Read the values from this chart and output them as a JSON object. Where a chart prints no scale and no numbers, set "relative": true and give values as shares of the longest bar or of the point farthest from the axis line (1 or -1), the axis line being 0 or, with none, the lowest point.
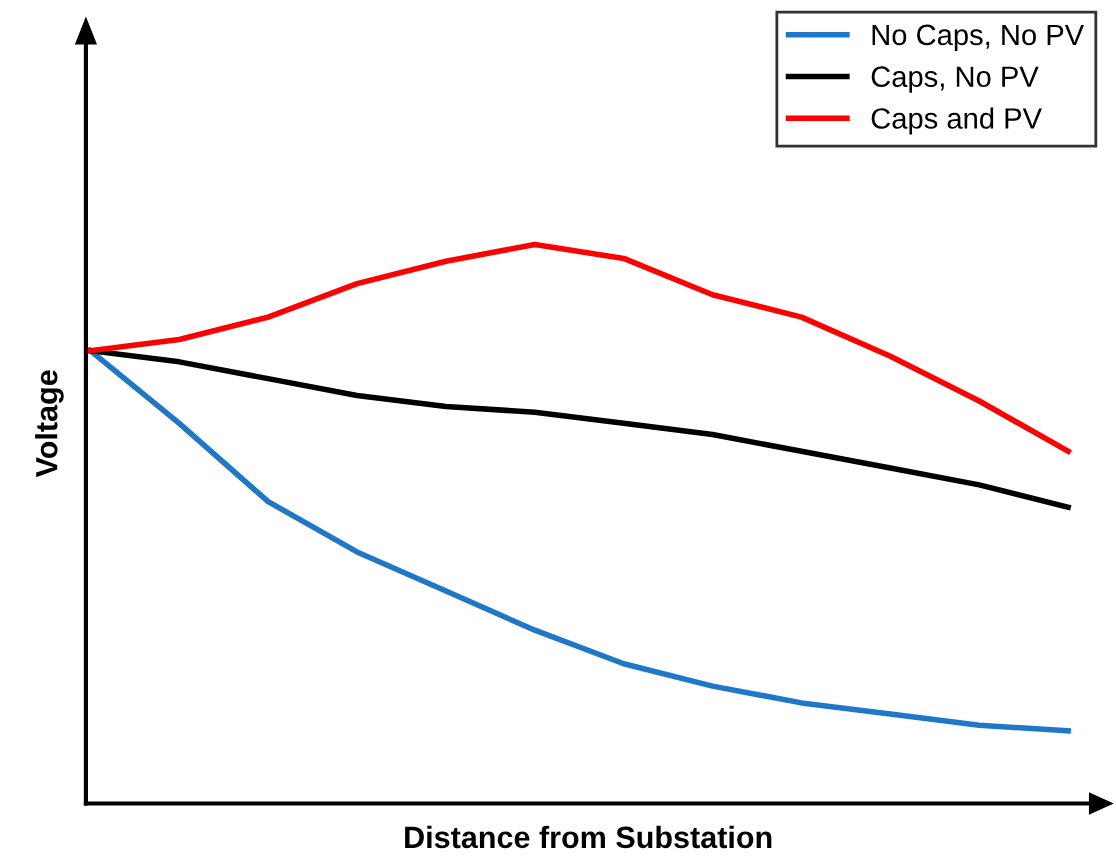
{
  "chart_data": {
    "type": "line",
    "relative": true,
    "xlabel": "Distance from Substation",
    "ylabel": "Voltage",
    "categories": [
      null,
      null,
      null,
      null,
      null,
      null,
      null,
      null,
      null,
      null,
      null,
      null
    ],
    "series": [
      {
        "name": "No Caps, No PV",
        "color": "#1f77c8",
        "values": [
          0.81,
          0.68,
          0.54,
          0.45,
          0.38,
          0.31,
          0.25,
          0.21,
          0.18,
          0.16,
          0.14,
          0.13
        ]
      },
      {
        "name": "Caps, No PV",
        "color": "#000000",
        "values": [
          0.81,
          0.79,
          0.76,
          0.73,
          0.71,
          0.7,
          0.68,
          0.66,
          0.63,
          0.6,
          0.57,
          0.53
        ]
      },
      {
        "name": "Caps and PV",
        "color": "#ff0000",
        "values": [
          0.81,
          0.83,
          0.87,
          0.93,
          0.97,
          1.0,
          0.975,
          0.91,
          0.87,
          0.8,
          0.72,
          0.63
        ]
      }
    ],
    "legend": "top right",
    "grid": false,
    "tick_labels": false
  }
}
